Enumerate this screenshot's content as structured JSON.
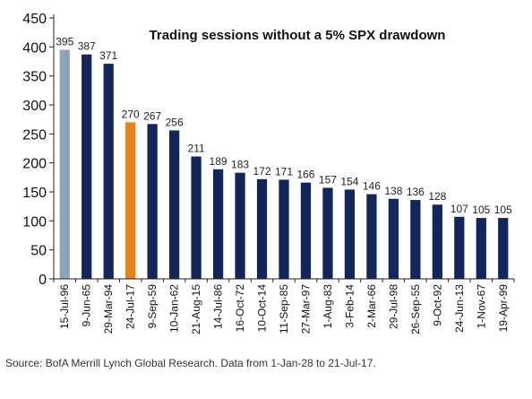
{
  "chart_data": {
    "type": "bar",
    "title": "Trading sessions without a 5% SPX drawdown",
    "categories": [
      "15-Jul-96",
      "9-Jun-65",
      "29-Mar-94",
      "24-Jul-17",
      "9-Sep-59",
      "10-Jan-62",
      "21-Aug-15",
      "14-Jul-86",
      "16-Oct-72",
      "10-Oct-14",
      "11-Sep-85",
      "27-Mar-97",
      "1-Aug-83",
      "3-Feb-14",
      "2-Mar-66",
      "29-Jul-98",
      "26-Sep-55",
      "9-Oct-92",
      "24-Jun-13",
      "1-Nov-67",
      "19-Apr-99"
    ],
    "values": [
      395,
      387,
      371,
      270,
      267,
      256,
      211,
      189,
      183,
      172,
      171,
      166,
      157,
      154,
      146,
      138,
      136,
      128,
      107,
      105,
      105
    ],
    "value_labels": [
      "395",
      "387",
      "371",
      "270",
      "267",
      "256",
      "211",
      "189",
      "183",
      "172",
      "171",
      "166",
      "157",
      "154",
      "146",
      "138",
      "136",
      "128",
      "107",
      "105",
      "105"
    ],
    "highlight": {
      "0": "#8ca3b8",
      "3": "#e8821f"
    },
    "default_color": "#13265c",
    "ylim": [
      0,
      450
    ],
    "yticks": [
      0,
      50,
      100,
      150,
      200,
      250,
      300,
      350,
      400,
      450
    ],
    "ytick_labels": [
      "0",
      "50",
      "100",
      "150",
      "200",
      "250",
      "300",
      "350",
      "400",
      "450"
    ],
    "grid": false,
    "legend": "none"
  },
  "source_text": "Source: BofA Merrill Lynch Global Research. Data from 1-Jan-28 to 21-Jul-17."
}
